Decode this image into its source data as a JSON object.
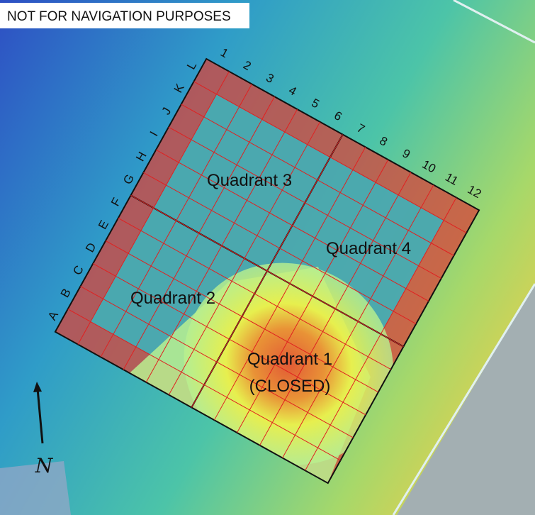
{
  "banner": "NOT FOR NAVIGATION PURPOSES",
  "grid": {
    "columns": [
      "1",
      "2",
      "3",
      "4",
      "5",
      "6",
      "7",
      "8",
      "9",
      "10",
      "11",
      "12"
    ],
    "rows": [
      "A",
      "B",
      "C",
      "D",
      "E",
      "F",
      "G",
      "H",
      "I",
      "J",
      "K",
      "L"
    ]
  },
  "quadrants": [
    {
      "label": "Quadrant 1",
      "note": "(CLOSED)"
    },
    {
      "label": "Quadrant 2"
    },
    {
      "label": "Quadrant 3"
    },
    {
      "label": "Quadrant 4"
    }
  ],
  "north": "N"
}
